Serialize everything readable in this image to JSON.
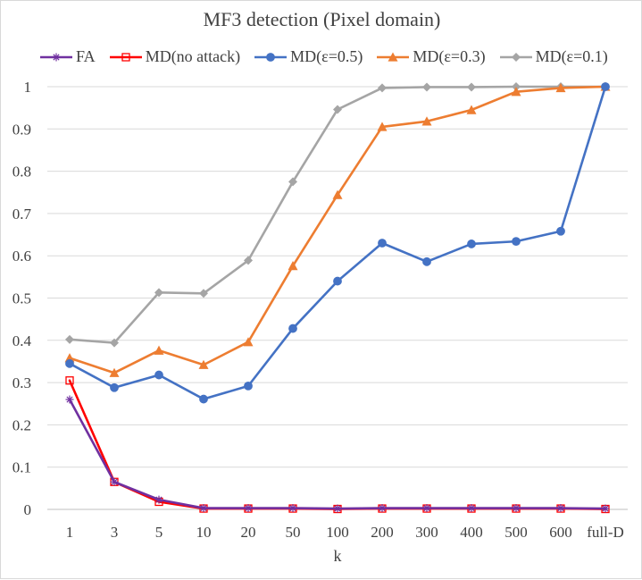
{
  "chart_data": {
    "type": "line",
    "title": "MF3 detection (Pixel domain)",
    "xlabel": "k",
    "ylabel": "",
    "categories": [
      "1",
      "3",
      "5",
      "10",
      "20",
      "50",
      "100",
      "200",
      "300",
      "400",
      "500",
      "600",
      "full-D"
    ],
    "ylim": [
      0,
      1
    ],
    "yticks": [
      "0",
      "0.1",
      "0.2",
      "0.3",
      "0.4",
      "0.5",
      "0.6",
      "0.7",
      "0.8",
      "0.9",
      "1"
    ],
    "grid": true,
    "legend_position": "top",
    "series": [
      {
        "name": "FA",
        "color": "#7030a0",
        "marker": "star",
        "values": [
          0.26,
          0.065,
          0.023,
          0.003,
          0.003,
          0.003,
          0.002,
          0.003,
          0.003,
          0.003,
          0.003,
          0.003,
          0.002
        ]
      },
      {
        "name": "MD(no attack)",
        "color": "#ff0000",
        "marker": "square",
        "values": [
          0.305,
          0.065,
          0.018,
          0.002,
          0.002,
          0.002,
          0.001,
          0.002,
          0.002,
          0.002,
          0.002,
          0.002,
          0.001
        ]
      },
      {
        "name": "MD(ε=0.5)",
        "color": "#4472c4",
        "marker": "circle",
        "values": [
          0.345,
          0.288,
          0.318,
          0.261,
          0.292,
          0.428,
          0.54,
          0.63,
          0.586,
          0.628,
          0.634,
          0.658,
          1.0
        ]
      },
      {
        "name": "MD(ε=0.3)",
        "color": "#ed7d31",
        "marker": "triangle",
        "values": [
          0.358,
          0.323,
          0.376,
          0.342,
          0.396,
          0.576,
          0.744,
          0.905,
          0.918,
          0.945,
          0.988,
          0.997,
          1.0
        ]
      },
      {
        "name": "MD(ε=0.1)",
        "color": "#a5a5a5",
        "marker": "diamond",
        "values": [
          0.402,
          0.394,
          0.513,
          0.511,
          0.589,
          0.775,
          0.946,
          0.997,
          0.999,
          0.999,
          1.0,
          1.0,
          1.0
        ]
      }
    ]
  }
}
